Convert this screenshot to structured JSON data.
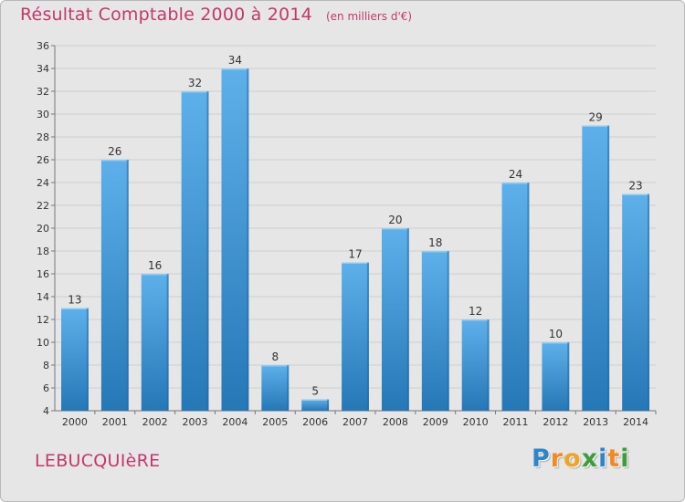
{
  "chart_data": {
    "type": "bar",
    "title": "Résultat Comptable 2000 à 2014",
    "subtitle": "(en milliers d'€)",
    "categories": [
      "2000",
      "2001",
      "2002",
      "2003",
      "2004",
      "2005",
      "2006",
      "2007",
      "2008",
      "2009",
      "2010",
      "2011",
      "2012",
      "2013",
      "2014"
    ],
    "values": [
      13,
      26,
      16,
      32,
      34,
      8,
      5,
      17,
      20,
      18,
      12,
      24,
      10,
      29,
      23
    ],
    "value_labels": [
      "13",
      "26",
      "16",
      "32",
      "34",
      "8",
      "5",
      "17",
      "20",
      "18",
      "12",
      "24",
      "10",
      "29",
      "23"
    ],
    "yticks": [
      "4",
      "6",
      "8",
      "10",
      "12",
      "14",
      "16",
      "18",
      "20",
      "22",
      "24",
      "26",
      "28",
      "30",
      "32",
      "34",
      "36"
    ],
    "ylim": [
      4,
      36
    ],
    "ystep": 2,
    "xlabel": "",
    "ylabel": "",
    "grid": true,
    "bar_color_top": "#5eb0ea",
    "bar_color_bottom": "#2677b6"
  },
  "commune": "LEBUCQUIèRE",
  "logo": {
    "letters": [
      "P",
      "r",
      "o",
      "x",
      "i",
      "t",
      "i"
    ],
    "colors": [
      "#2e86c9",
      "#f08a24",
      "#f0a324",
      "#3a9e3a",
      "#2e86c9",
      "#f08a24",
      "#3a9e3a"
    ]
  },
  "colors": {
    "accent": "#c2386b",
    "background": "#e6e6e6"
  }
}
